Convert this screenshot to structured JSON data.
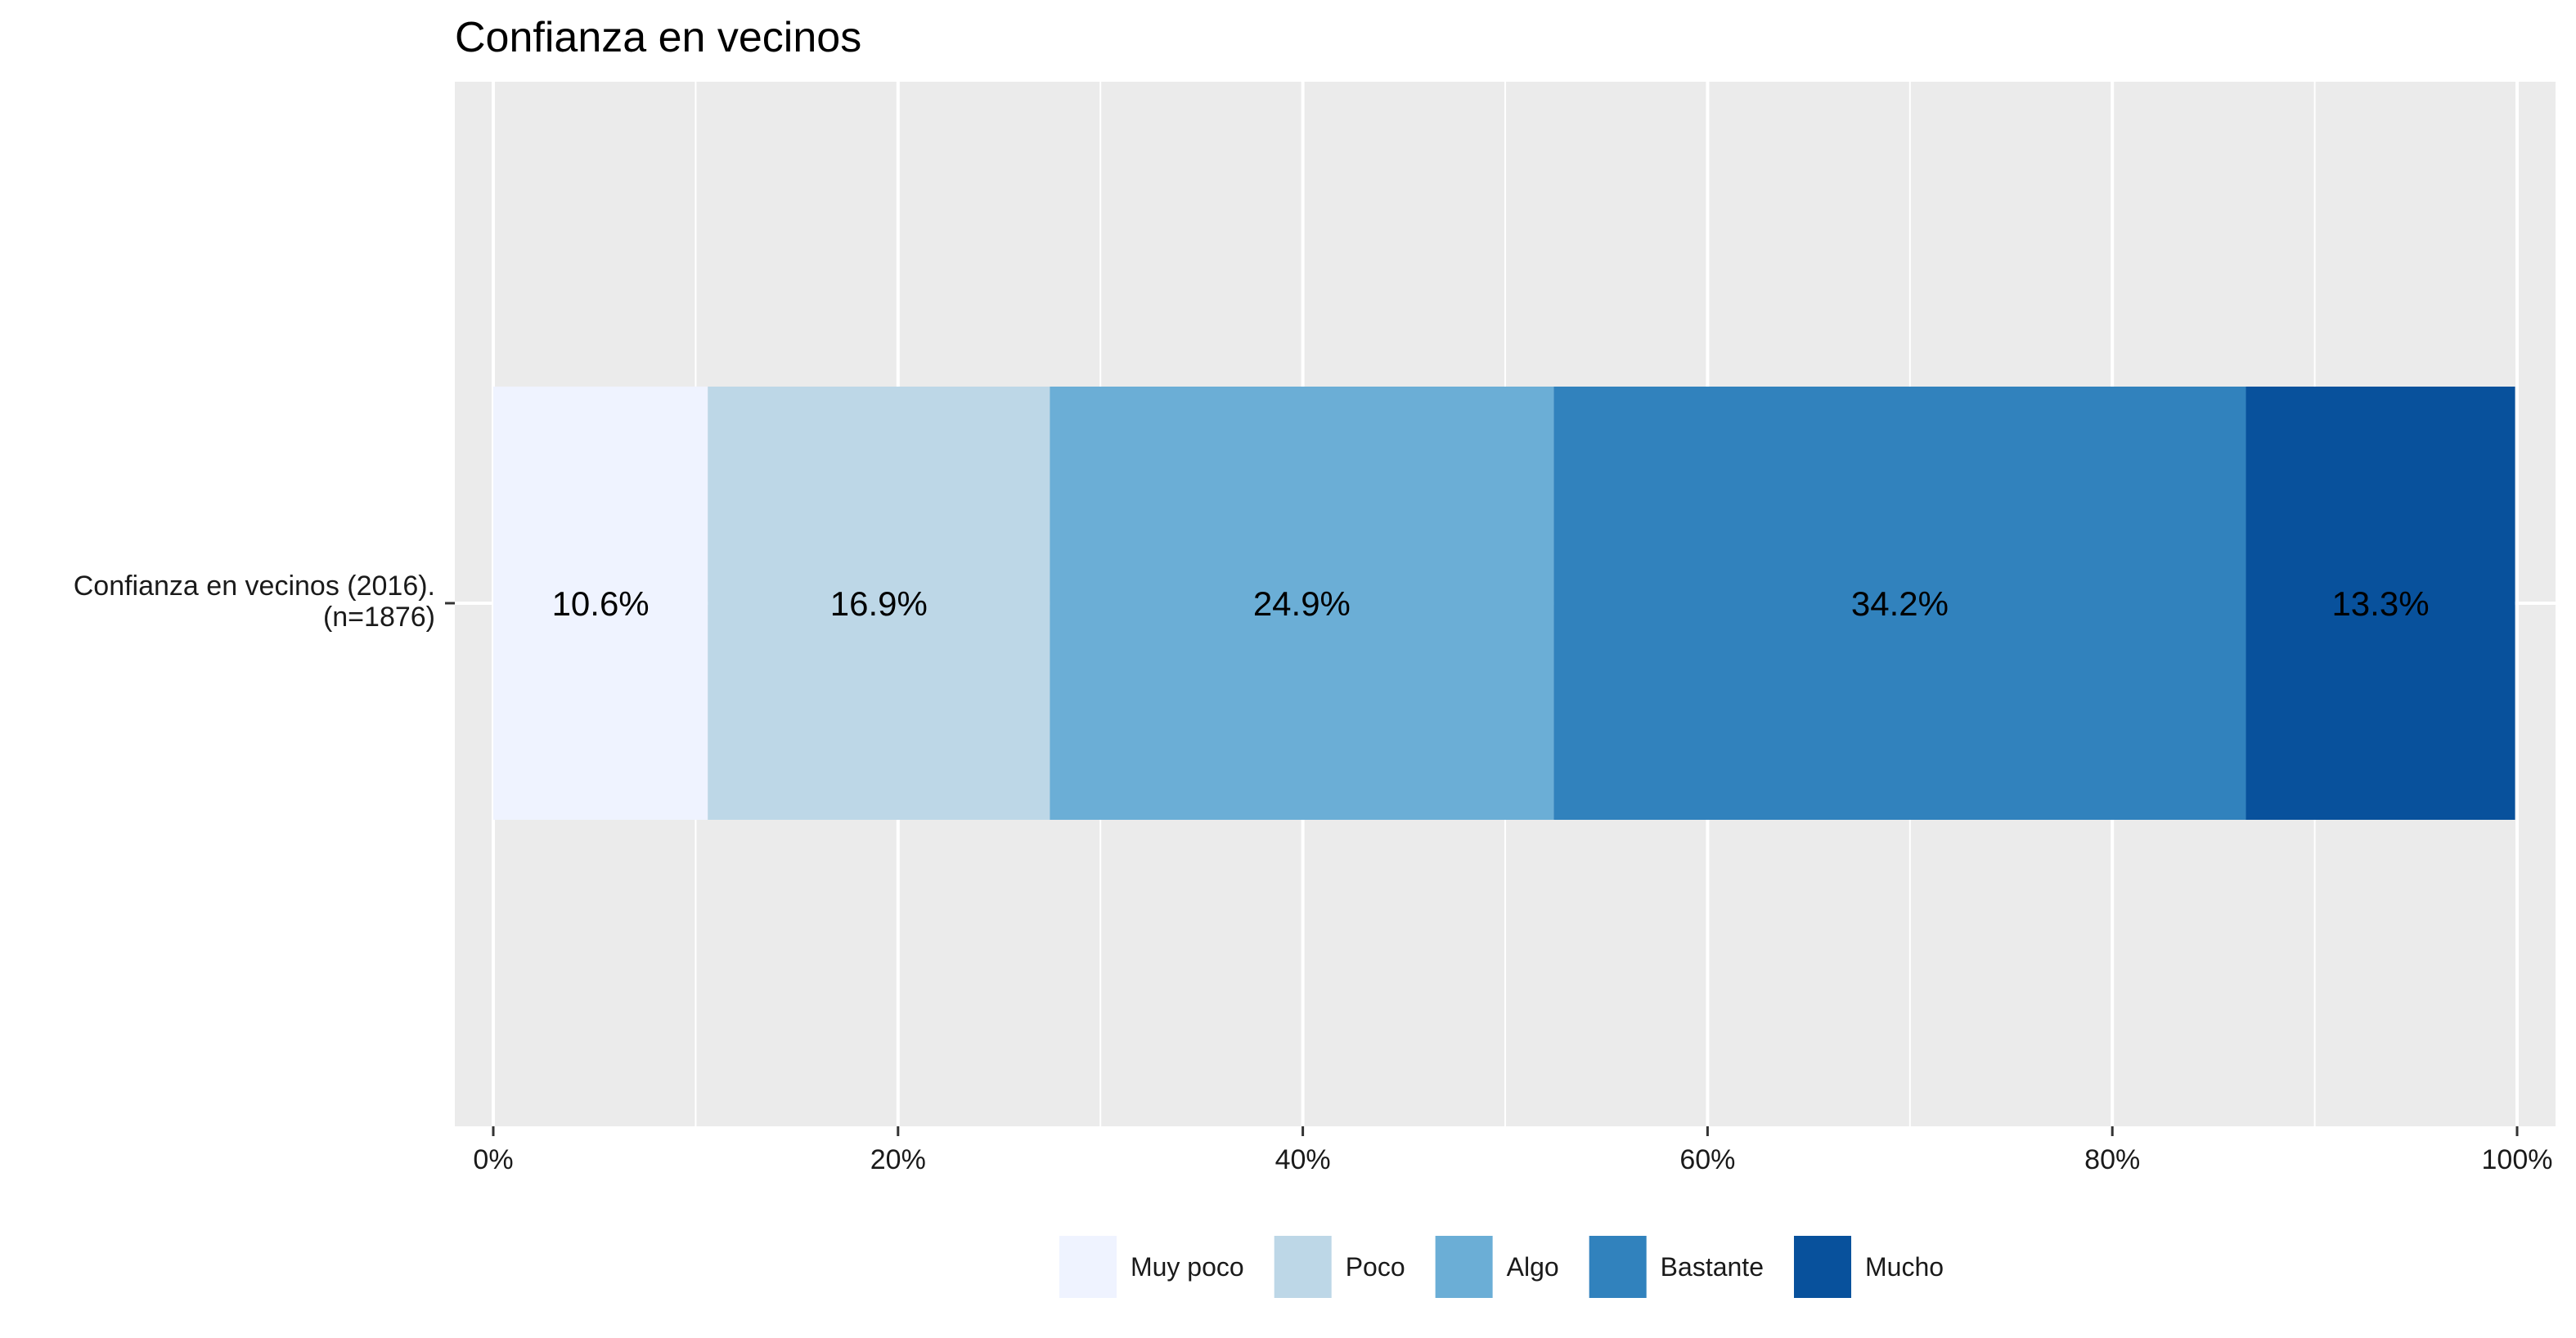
{
  "chart_data": {
    "type": "bar",
    "orientation": "horizontal",
    "stacked": true,
    "title": "Confianza en vecinos",
    "categories": [
      "Confianza en vecinos (2016).\n(n=1876)"
    ],
    "series": [
      {
        "name": "Muy poco",
        "values": [
          10.6
        ],
        "label": "10.6%",
        "color": "#eff3ff"
      },
      {
        "name": "Poco",
        "values": [
          16.9
        ],
        "label": "16.9%",
        "color": "#bdd7e7"
      },
      {
        "name": "Algo",
        "values": [
          24.9
        ],
        "label": "24.9%",
        "color": "#6baed6"
      },
      {
        "name": "Bastante",
        "values": [
          34.2
        ],
        "label": "34.2%",
        "color": "#3182bd"
      },
      {
        "name": "Mucho",
        "values": [
          13.3
        ],
        "label": "13.3%",
        "color": "#08519c"
      }
    ],
    "xlim": [
      0,
      100
    ],
    "xticks": [
      0,
      20,
      40,
      60,
      80,
      100
    ],
    "xtick_labels": [
      "0%",
      "20%",
      "40%",
      "60%",
      "80%",
      "100%"
    ],
    "xlabel": "",
    "ylabel": "",
    "grid": true,
    "legend_position": "bottom",
    "panel_background": "#ebebeb"
  }
}
